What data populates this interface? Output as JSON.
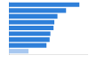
{
  "chart_data": {
    "type": "bar",
    "orientation": "horizontal",
    "categories": [
      null,
      null,
      null,
      null,
      null,
      null,
      null,
      null,
      null
    ],
    "values": [
      90,
      73,
      62,
      58,
      57,
      53,
      52,
      48,
      25
    ],
    "colors": [
      "#2e7fd9",
      "#2e7fd9",
      "#2e7fd9",
      "#2e7fd9",
      "#2e7fd9",
      "#2e7fd9",
      "#2e7fd9",
      "#2e7fd9",
      "#a8c8f0"
    ],
    "xlim": [
      0,
      100
    ],
    "grid": false,
    "tick_labels": false
  }
}
